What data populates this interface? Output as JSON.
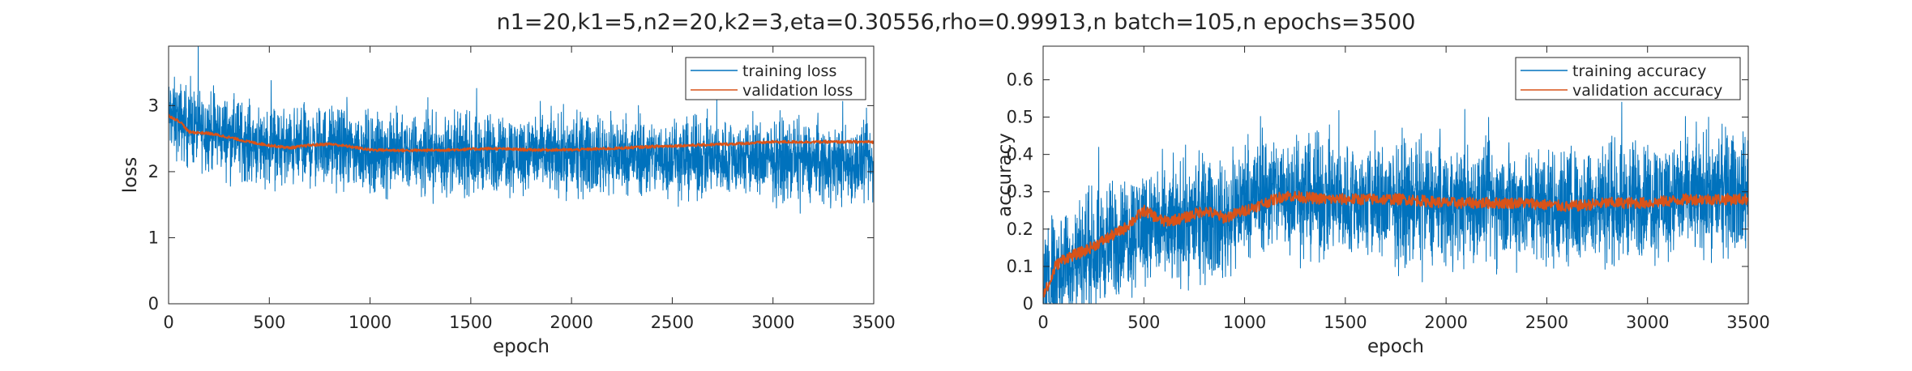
{
  "figure": {
    "title": "n1=20,k1=5,n2=20,k2=3,eta=0.30556,rho=0.99913,n batch=105,n epochs=3500"
  },
  "colors": {
    "training": "#0072BD",
    "validation": "#D95319",
    "axis": "#262626",
    "frame": "#B3B3B3"
  },
  "chart_data": [
    {
      "type": "line",
      "title": "",
      "xlabel": "epoch",
      "ylabel": "loss",
      "xlim": [
        0,
        3500
      ],
      "ylim": [
        0,
        3.9
      ],
      "xticks": [
        0,
        500,
        1000,
        1500,
        2000,
        2500,
        3000,
        3500
      ],
      "yticks": [
        0,
        1,
        2,
        3
      ],
      "legend_position": "top-right",
      "grid": false,
      "series": [
        {
          "name": "training loss",
          "color": "#0072BD",
          "noisy": true,
          "x": [
            0,
            100,
            200,
            300,
            400,
            500,
            600,
            700,
            800,
            900,
            1000,
            1200,
            1400,
            1600,
            1800,
            2000,
            2200,
            2400,
            2600,
            2800,
            3000,
            3200,
            3400,
            3500
          ],
          "y": [
            2.85,
            2.7,
            2.62,
            2.55,
            2.45,
            2.4,
            2.35,
            2.38,
            2.4,
            2.35,
            2.3,
            2.28,
            2.26,
            2.27,
            2.28,
            2.25,
            2.26,
            2.22,
            2.2,
            2.2,
            2.18,
            2.15,
            2.12,
            2.1
          ],
          "noise": 0.28
        },
        {
          "name": "validation loss",
          "color": "#D95319",
          "noisy": false,
          "x": [
            0,
            60,
            100,
            200,
            300,
            400,
            500,
            600,
            700,
            800,
            900,
            1000,
            1200,
            1400,
            1600,
            1800,
            2000,
            2200,
            2400,
            2600,
            2800,
            3000,
            3200,
            3400,
            3500
          ],
          "y": [
            2.85,
            2.75,
            2.6,
            2.58,
            2.52,
            2.45,
            2.4,
            2.36,
            2.4,
            2.42,
            2.38,
            2.33,
            2.32,
            2.33,
            2.35,
            2.33,
            2.33,
            2.35,
            2.38,
            2.4,
            2.42,
            2.45,
            2.45,
            2.45,
            2.45
          ],
          "noise": 0.02
        }
      ]
    },
    {
      "type": "line",
      "title": "",
      "xlabel": "epoch",
      "ylabel": "accuracy",
      "xlim": [
        0,
        3500
      ],
      "ylim": [
        0,
        0.69
      ],
      "xticks": [
        0,
        500,
        1000,
        1500,
        2000,
        2500,
        3000,
        3500
      ],
      "yticks": [
        0,
        0.1,
        0.2,
        0.3,
        0.4,
        0.5,
        0.6
      ],
      "ytick_labels": [
        "0",
        "0.1",
        "0.2",
        "0.3",
        "0.4",
        "0.5",
        "0.6"
      ],
      "legend_position": "top-right",
      "grid": false,
      "series": [
        {
          "name": "training accuracy",
          "color": "#0072BD",
          "noisy": true,
          "x": [
            0,
            50,
            100,
            200,
            300,
            400,
            500,
            600,
            700,
            800,
            900,
            1000,
            1100,
            1200,
            1400,
            1600,
            1800,
            2000,
            2200,
            2400,
            2600,
            2800,
            3000,
            3200,
            3400,
            3500
          ],
          "y": [
            0.03,
            0.1,
            0.1,
            0.13,
            0.16,
            0.18,
            0.22,
            0.2,
            0.22,
            0.23,
            0.22,
            0.28,
            0.3,
            0.3,
            0.28,
            0.27,
            0.27,
            0.27,
            0.27,
            0.27,
            0.26,
            0.27,
            0.28,
            0.29,
            0.3,
            0.3
          ],
          "noise": 0.075
        },
        {
          "name": "validation accuracy",
          "color": "#D95319",
          "noisy": false,
          "x": [
            0,
            30,
            60,
            100,
            200,
            300,
            400,
            500,
            600,
            700,
            800,
            900,
            1000,
            1100,
            1200,
            1400,
            1600,
            1800,
            2000,
            2200,
            2400,
            2600,
            2800,
            3000,
            3200,
            3400,
            3500
          ],
          "y": [
            0.03,
            0.05,
            0.1,
            0.12,
            0.14,
            0.17,
            0.2,
            0.25,
            0.22,
            0.23,
            0.25,
            0.23,
            0.25,
            0.27,
            0.29,
            0.28,
            0.28,
            0.28,
            0.27,
            0.27,
            0.27,
            0.26,
            0.27,
            0.27,
            0.28,
            0.28,
            0.28
          ],
          "noise": 0.015
        }
      ]
    }
  ]
}
